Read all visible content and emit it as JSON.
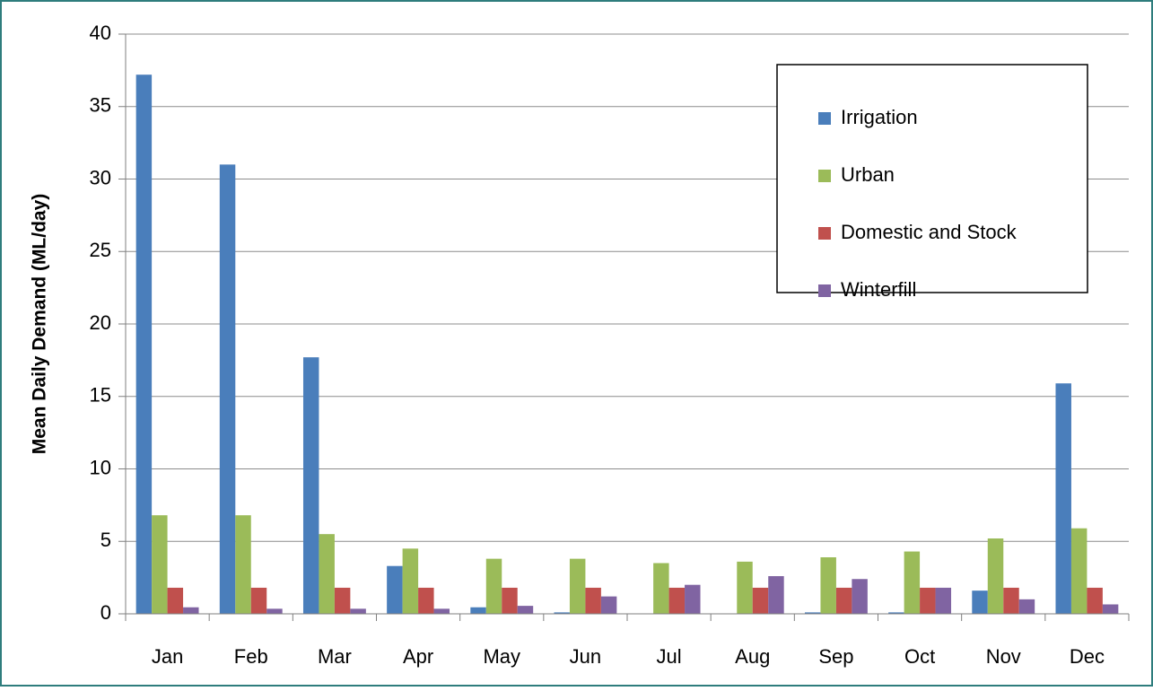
{
  "chart_data": {
    "type": "bar",
    "y_label": "Mean Daily Demand (ML/day)",
    "categories": [
      "Jan",
      "Feb",
      "Mar",
      "Apr",
      "May",
      "Jun",
      "Jul",
      "Aug",
      "Sep",
      "Oct",
      "Nov",
      "Dec"
    ],
    "series": [
      {
        "name": "Irrigation",
        "color": "#4a7ebb",
        "values": [
          37.2,
          31.0,
          17.7,
          3.3,
          0.45,
          0.1,
          0,
          0,
          0.1,
          0.1,
          1.6,
          15.9
        ]
      },
      {
        "name": "Urban",
        "color": "#9bbb59",
        "values": [
          6.8,
          6.8,
          5.5,
          4.5,
          3.8,
          3.8,
          3.5,
          3.6,
          3.9,
          4.3,
          5.2,
          5.9
        ]
      },
      {
        "name": "Domestic and Stock",
        "color": "#c0504d",
        "values": [
          1.8,
          1.8,
          1.8,
          1.8,
          1.8,
          1.8,
          1.8,
          1.8,
          1.8,
          1.8,
          1.8,
          1.8
        ]
      },
      {
        "name": "Winterfill",
        "color": "#8064a2",
        "values": [
          0.45,
          0.35,
          0.35,
          0.35,
          0.55,
          1.2,
          2.0,
          2.6,
          2.4,
          1.8,
          1.0,
          0.65
        ]
      }
    ],
    "ylim": [
      0,
      40
    ],
    "yticks": [
      0,
      5,
      10,
      15,
      20,
      25,
      30,
      35,
      40
    ],
    "grid": true,
    "legend": "upper right"
  }
}
